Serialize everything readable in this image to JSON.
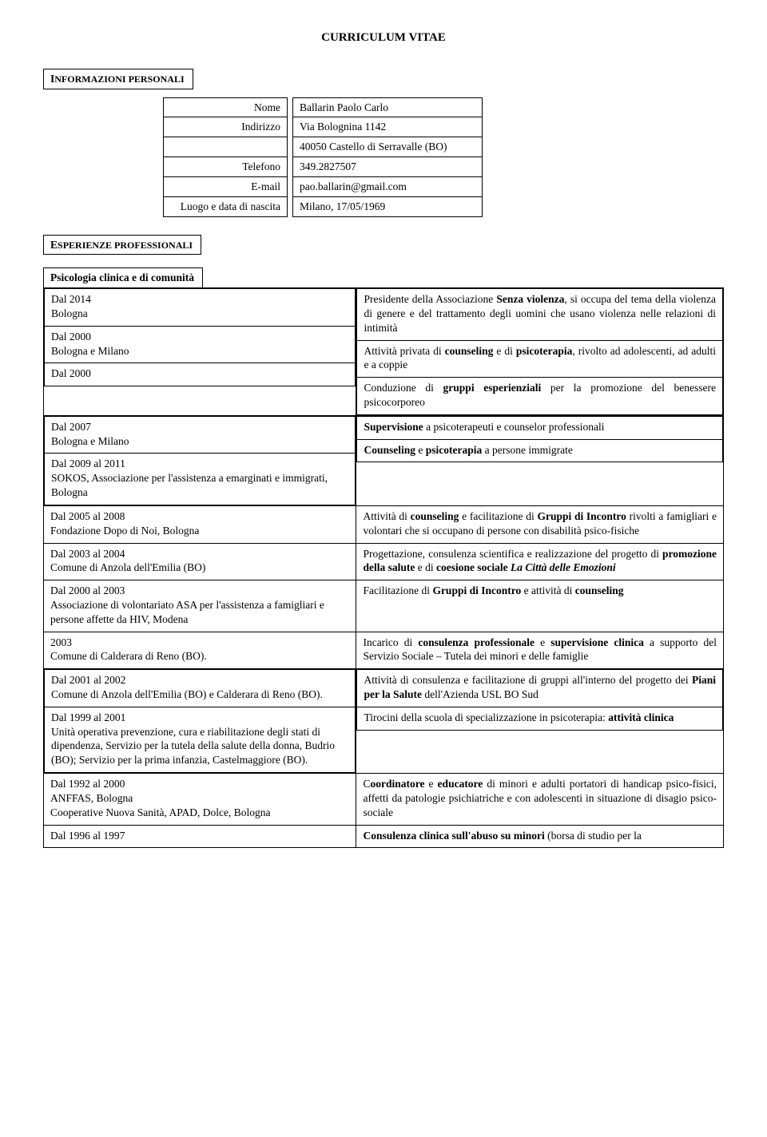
{
  "title": "CURRICULUM VITAE",
  "sections": {
    "personal_heading_prefix": "I",
    "personal_heading_rest": "NFORMAZIONI PERSONALI",
    "prof_heading_prefix": "E",
    "prof_heading_rest": "SPERIENZE PROFESSIONALI",
    "subsection": "Psicologia clinica e di comunità"
  },
  "info": {
    "rows": [
      {
        "label": "Nome",
        "value": "Ballarin Paolo Carlo"
      },
      {
        "label": "Indirizzo",
        "value": "Via Bolognina 1142"
      },
      {
        "label": "",
        "value": "40050 Castello di Serravalle (BO)"
      },
      {
        "label": "Telefono",
        "value": "349.2827507"
      },
      {
        "label": "E-mail",
        "value": "pao.ballarin@gmail.com"
      },
      {
        "label": "Luogo e data di nascita",
        "value": "Milano, 17/05/1969"
      }
    ]
  },
  "exp": [
    {
      "left": {
        "l1": "Dal 2014",
        "l2": "Bologna"
      },
      "key": "r0",
      "right_html": "Presidente della Associazione <span class='b'>Senza violenza</span>, si occupa del tema della violenza di genere e del trattamento degli uomini che usano violenza nelle relazioni di intimità"
    },
    {
      "left": {
        "l1": "Dal 2000",
        "l2": "Bologna e Milano"
      },
      "key": "r1",
      "right_html": "Attività privata di <span class='b'>counseling</span> e di <span class='b'>psicoterapia</span>, rivolto ad adolescenti, ad adulti e a coppie"
    },
    {
      "left": {
        "l1": "Dal 2000"
      },
      "key": "r2",
      "right_html": "Conduzione di <span class='b'>gruppi esperienziali</span> per la promozione del benessere psicocorporeo"
    },
    {
      "left": {
        "l1": "Dal 2007",
        "l2": "Bologna e Milano"
      },
      "key": "r3",
      "right_html": "<span class='b'>Supervisione</span> a psicoterapeuti e counselor professionali"
    },
    {
      "left": {
        "l1": "Dal 2009 al 2011",
        "l2": "SOKOS, Associazione per l'assistenza a emarginati e immigrati, Bologna"
      },
      "key": "r4",
      "right_html": "<span class='b'>Counseling</span> e <span class='b'>psicoterapia</span> a persone immigrate"
    },
    {
      "left": {
        "l1": "Dal 2005 al 2008",
        "l2": "Fondazione Dopo di Noi, Bologna"
      },
      "key": "r5",
      "right_html": "Attività di <span class='b'>counseling</span> e facilitazione di <span class='b'>Gruppi di Incontro</span> rivolti a famigliari e volontari che si occupano di persone con disabilità psico-fisiche"
    },
    {
      "left": {
        "l1": "Dal 2003 al 2004",
        "l2": "Comune di Anzola dell'Emilia (BO)"
      },
      "key": "r6",
      "right_html": "Progettazione, consulenza scientifica e realizzazione del progetto di <span class='b'>promozione della salute</span> e di <span class='b'>coesione sociale <span class='i'>La Città delle Emozioni</span></span>"
    },
    {
      "left": {
        "l1": "Dal 2000 al 2003",
        "l2": "Associazione di volontariato ASA per l'assistenza a famigliari e persone affette da HIV, Modena"
      },
      "key": "r7",
      "right_html": "Facilitazione di <span class='b'>Gruppi di Incontro</span> e attività di <span class='b'>counseling</span>"
    },
    {
      "left": {
        "l1": "2003",
        "l2": "Comune di Calderara di Reno (BO)."
      },
      "key": "r8",
      "right_html": "Incarico di <span class='b'>consulenza professionale</span> e <span class='b'>supervisione clinica</span> a supporto del Servizio Sociale – Tutela dei minori e delle famiglie"
    },
    {
      "left": {
        "l1": "Dal 2001 al 2002",
        "l2": "Comune di Anzola dell'Emilia (BO) e Calderara di Reno (BO)."
      },
      "key": "r9",
      "right_html": "Attività di consulenza e facilitazione di gruppi all'interno del progetto dei <span class='b'>Piani per la Salute</span> dell'Azienda USL BO Sud"
    },
    {
      "left": {
        "l1": "Dal 1999 al 2001",
        "l2": "Unità operativa prevenzione, cura e riabilitazione degli stati di dipendenza, Servizio per la tutela della salute della donna, Budrio (BO); Servizio per la prima infanzia, Castelmaggiore (BO)."
      },
      "key": "r10",
      "right_html": "Tirocini della scuola di specializzazione in psicoterapia: <span class='b'>attività clinica</span>"
    },
    {
      "left": {
        "l1": "Dal 1992 al 2000",
        "l2": "ANFFAS, Bologna",
        "l3": "Cooperative Nuova Sanità, APAD, Dolce, Bologna"
      },
      "key": "r11",
      "right_html": "C<span class='b'>oordinatore</span> e <span class='b'>educatore</span> di minori e adulti portatori di handicap psico-fisici, affetti da patologie psichiatriche e con adolescenti in situazione di disagio psico-sociale"
    },
    {
      "left": {
        "l1": "Dal 1996 al 1997"
      },
      "key": "r12",
      "right_html": "<span class='b'>Consulenza clinica sull'abuso su minori</span> (borsa di studio per la"
    }
  ]
}
